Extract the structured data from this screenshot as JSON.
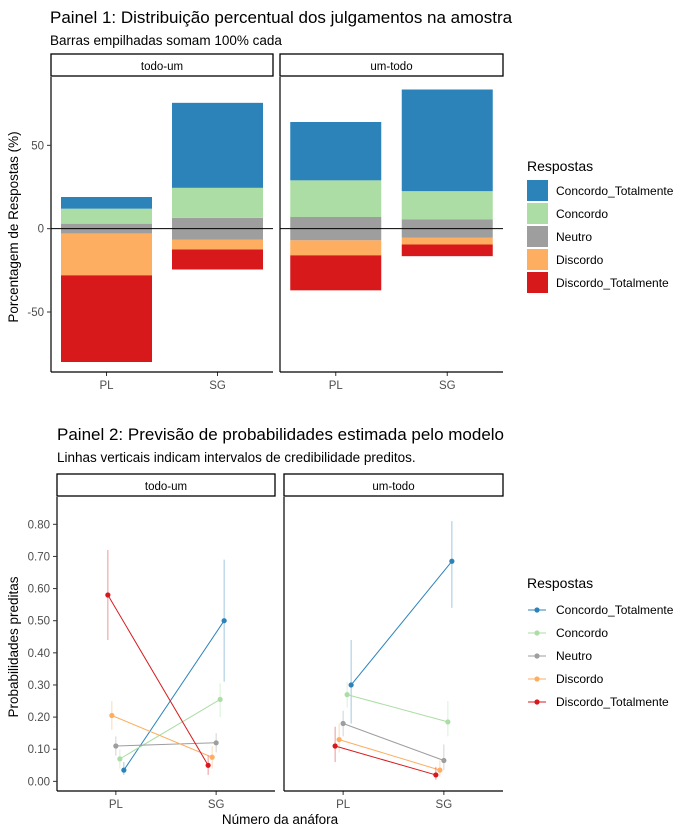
{
  "colors": {
    "Concordo_Totalmente": "#2b83ba",
    "Concordo": "#abdda4",
    "Neutro": "#9e9e9e",
    "Discordo": "#fdae61",
    "Discordo_Totalmente": "#d7191c"
  },
  "legend": {
    "title": "Respostas",
    "items": [
      "Concordo_Totalmente",
      "Concordo",
      "Neutro",
      "Discordo",
      "Discordo_Totalmente"
    ]
  },
  "chart_data": [
    {
      "type": "bar",
      "stacked": "diverging",
      "title": "Painel 1: Distribuição percentual dos julgamentos na amostra",
      "subtitle": "Barras empilhadas somam 100% cada",
      "ylabel": "Porcentagem de Respostas (%)",
      "xlabel": "",
      "ylim": [
        -86,
        91
      ],
      "yticks": [
        -50,
        0,
        50
      ],
      "facets": [
        "todo-um",
        "um-todo"
      ],
      "categories": [
        "PL",
        "SG"
      ],
      "legend_title": "Respostas",
      "legend_position": "right",
      "zero_line": true,
      "grid": false,
      "series_order_positive": [
        "Neutro",
        "Concordo",
        "Concordo_Totalmente"
      ],
      "series_order_negative": [
        "Neutro",
        "Discordo",
        "Discordo_Totalmente"
      ],
      "values": {
        "todo-um": {
          "PL": {
            "Concordo_Totalmente": 7,
            "Concordo": 9,
            "Neutro": 6,
            "Discordo": 25,
            "Discordo_Totalmente": 52
          },
          "SG": {
            "Concordo_Totalmente": 51,
            "Concordo": 18,
            "Neutro": 13,
            "Discordo": 6,
            "Discordo_Totalmente": 12
          }
        },
        "um-todo": {
          "PL": {
            "Concordo_Totalmente": 35,
            "Concordo": 22,
            "Neutro": 14,
            "Discordo": 9,
            "Discordo_Totalmente": 21
          },
          "SG": {
            "Concordo_Totalmente": 61,
            "Concordo": 17,
            "Neutro": 11,
            "Discordo": 4,
            "Discordo_Totalmente": 7
          }
        }
      }
    },
    {
      "type": "line",
      "title": "Painel 2: Previsão de probabilidades estimada pelo modelo",
      "subtitle": "Linhas verticais indicam intervalos de credibilidade preditos.",
      "ylabel": "Probabilidades preditas",
      "xlabel": "Número da anáfora",
      "ylim": [
        -0.03,
        0.885
      ],
      "yticks": [
        "0.00",
        "0.10",
        "0.20",
        "0.30",
        "0.40",
        "0.50",
        "0.60",
        "0.70",
        "0.80"
      ],
      "facets": [
        "todo-um",
        "um-todo"
      ],
      "categories": [
        "PL",
        "SG"
      ],
      "legend_title": "Respostas",
      "legend_position": "right",
      "grid": false,
      "dodge_order": [
        "Discordo_Totalmente",
        "Discordo",
        "Neutro",
        "Concordo",
        "Concordo_Totalmente"
      ],
      "series": {
        "todo-um": [
          {
            "name": "Concordo_Totalmente",
            "values": [
              0.035,
              0.5
            ],
            "lower": [
              0.02,
              0.31
            ],
            "upper": [
              0.06,
              0.69
            ]
          },
          {
            "name": "Concordo",
            "values": [
              0.07,
              0.255
            ],
            "lower": [
              0.04,
              0.2
            ],
            "upper": [
              0.1,
              0.305
            ]
          },
          {
            "name": "Neutro",
            "values": [
              0.11,
              0.12
            ],
            "lower": [
              0.08,
              0.09
            ],
            "upper": [
              0.14,
              0.15
            ]
          },
          {
            "name": "Discordo",
            "values": [
              0.205,
              0.075
            ],
            "lower": [
              0.16,
              0.04
            ],
            "upper": [
              0.25,
              0.11
            ]
          },
          {
            "name": "Discordo_Totalmente",
            "values": [
              0.58,
              0.05
            ],
            "lower": [
              0.44,
              0.02
            ],
            "upper": [
              0.72,
              0.08
            ]
          }
        ],
        "um-todo": [
          {
            "name": "Concordo_Totalmente",
            "values": [
              0.3,
              0.685
            ],
            "lower": [
              0.18,
              0.54
            ],
            "upper": [
              0.44,
              0.81
            ]
          },
          {
            "name": "Concordo",
            "values": [
              0.27,
              0.185
            ],
            "lower": [
              0.23,
              0.14
            ],
            "upper": [
              0.31,
              0.25
            ]
          },
          {
            "name": "Neutro",
            "values": [
              0.18,
              0.065
            ],
            "lower": [
              0.14,
              0.035
            ],
            "upper": [
              0.22,
              0.115
            ]
          },
          {
            "name": "Discordo",
            "values": [
              0.13,
              0.035
            ],
            "lower": [
              0.09,
              0.015
            ],
            "upper": [
              0.18,
              0.065
            ]
          },
          {
            "name": "Discordo_Totalmente",
            "values": [
              0.11,
              0.02
            ],
            "lower": [
              0.06,
              0.005
            ],
            "upper": [
              0.17,
              0.045
            ]
          }
        ]
      }
    }
  ]
}
